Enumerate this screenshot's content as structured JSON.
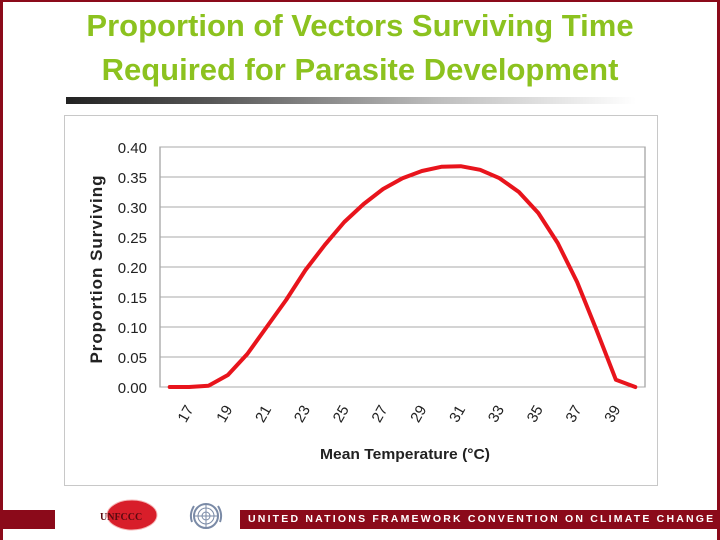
{
  "slide": {
    "title_line1": "Proportion of Vectors Surviving Time",
    "title_line2": "Required for Parasite Development",
    "title_color": "#8cc21f"
  },
  "footer": {
    "text": "UNITED NATIONS FRAMEWORK CONVENTION ON CLIMATE CHANGE",
    "logo_text": "UNFCCC",
    "bar_color": "#8b0a1a",
    "un_emblem_icon": "un-emblem-icon"
  },
  "chart_data": {
    "type": "line",
    "xlabel": "Mean Temperature (°C)",
    "ylabel": "Proportion Surviving",
    "x": [
      16,
      17,
      18,
      19,
      20,
      21,
      22,
      23,
      24,
      25,
      26,
      27,
      28,
      29,
      30,
      31,
      32,
      33,
      34,
      35,
      36,
      37,
      38,
      39,
      40
    ],
    "series": [
      {
        "values": [
          0.0,
          0.0,
          0.002,
          0.02,
          0.055,
          0.1,
          0.145,
          0.195,
          0.237,
          0.275,
          0.305,
          0.33,
          0.348,
          0.36,
          0.367,
          0.368,
          0.362,
          0.348,
          0.325,
          0.29,
          0.24,
          0.175,
          0.095,
          0.012,
          0.0
        ],
        "color": "#e8141c"
      }
    ],
    "xlim": [
      15.5,
      40.5
    ],
    "ylim": [
      0,
      0.4
    ],
    "x_ticks": [
      "17",
      "19",
      "21",
      "23",
      "25",
      "27",
      "29",
      "31",
      "33",
      "35",
      "37",
      "39"
    ],
    "y_ticks": [
      "0.00",
      "0.05",
      "0.10",
      "0.15",
      "0.20",
      "0.25",
      "0.30",
      "0.35",
      "0.40"
    ],
    "grid": true,
    "legend": "none"
  }
}
